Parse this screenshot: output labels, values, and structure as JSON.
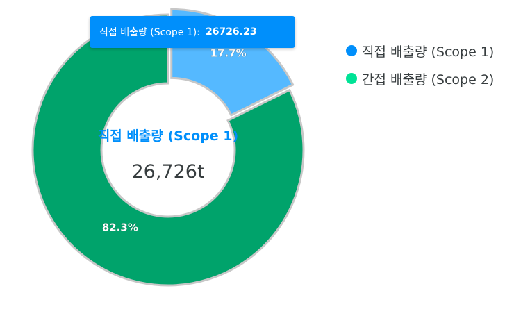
{
  "chart_data": {
    "type": "pie",
    "variant": "donut",
    "categories": [
      "직접 배출량 (Scope 1)",
      "간접 배출량 (Scope 2)"
    ],
    "values": [
      26726.23,
      124259.77
    ],
    "percent_labels": [
      "17.7%",
      "82.3%"
    ],
    "colors": [
      "#55b9ff",
      "#00a36b"
    ],
    "legend_colors": [
      "#008ffb",
      "#00e396"
    ],
    "legend_position": "right",
    "center_label": {
      "name": "직접 배출량 (Scope 1)",
      "value": "26,726t",
      "name_color": "#008ffb"
    },
    "tooltip": {
      "label": "직접 배출량 (Scope 1):",
      "value": "26726.23"
    }
  }
}
